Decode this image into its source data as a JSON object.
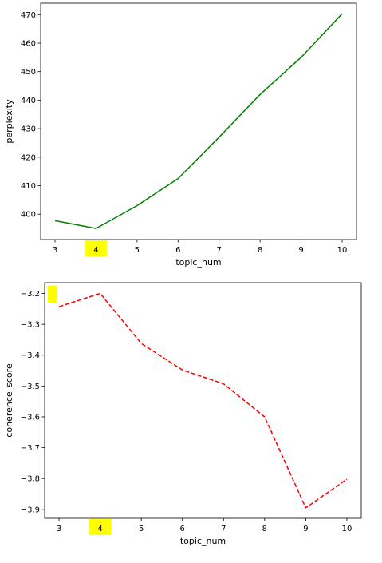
{
  "chart_data": [
    {
      "type": "line",
      "xlabel": "topic_num",
      "ylabel": "perplexity",
      "x": [
        3,
        4,
        5,
        6,
        7,
        8,
        9,
        10
      ],
      "xticks": [
        "3",
        "4",
        "5",
        "6",
        "7",
        "8",
        "9",
        "10"
      ],
      "xlim": [
        2.65,
        10.35
      ],
      "yticks": [
        400,
        410,
        420,
        430,
        440,
        450,
        460,
        470
      ],
      "ylim": [
        391.1,
        474.0
      ],
      "grid": false,
      "highlight_x": "4",
      "series": [
        {
          "values": [
            397.7,
            395.0,
            403.0,
            412.5,
            427.0,
            442.0,
            455.0,
            470.3
          ],
          "color": "#008000",
          "style": "solid"
        }
      ]
    },
    {
      "type": "line",
      "xlabel": "topic_num",
      "ylabel": "coherence_score",
      "x": [
        3,
        4,
        5,
        6,
        7,
        8,
        9,
        10
      ],
      "xticks": [
        "3",
        "4",
        "5",
        "6",
        "7",
        "8",
        "9",
        "10"
      ],
      "xlim": [
        2.65,
        10.35
      ],
      "yticks": [
        "−3.2",
        "−3.3",
        "−3.4",
        "−3.5",
        "−3.6",
        "−3.7",
        "−3.8",
        "−3.9"
      ],
      "ytick_values": [
        -3.2,
        -3.3,
        -3.4,
        -3.5,
        -3.6,
        -3.7,
        -3.8,
        -3.9
      ],
      "ylim": [
        -3.929,
        -3.165
      ],
      "grid": false,
      "highlight_x": "4",
      "highlight_y": "−3.2",
      "series": [
        {
          "values": [
            -3.243,
            -3.2,
            -3.362,
            -3.448,
            -3.493,
            -3.6,
            -3.895,
            -3.802
          ],
          "color": "#ff0000",
          "style": "dashed"
        }
      ]
    }
  ],
  "colors": {
    "highlight": "#ffff00",
    "axis": "#000000"
  }
}
